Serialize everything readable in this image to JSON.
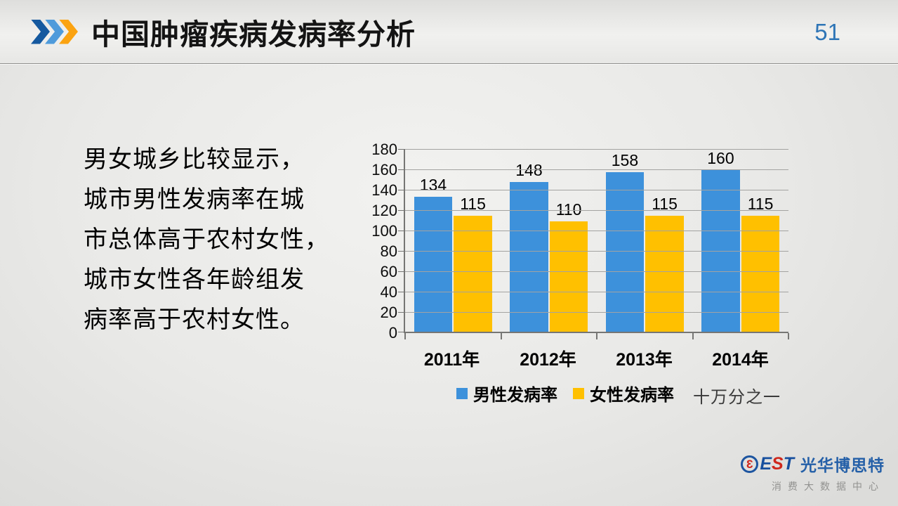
{
  "header": {
    "title": "中国肿瘤疾病发病率分析",
    "page_number": "51"
  },
  "body_text": {
    "lines": [
      "男女城乡比较显示，",
      "城市男性发病率在城",
      "市总体高于农村女性，",
      "城市女性各年龄组发",
      "病率高于农村女性。"
    ]
  },
  "chart_data": {
    "type": "bar",
    "title": "",
    "xlabel": "",
    "ylabel": "",
    "categories": [
      "2011年",
      "2012年",
      "2013年",
      "2014年"
    ],
    "series": [
      {
        "name": "男性发病率",
        "color": "#3d91db",
        "values": [
          134,
          148,
          158,
          160
        ]
      },
      {
        "name": "女性发病率",
        "color": "#ffc000",
        "values": [
          115,
          110,
          115,
          115
        ]
      }
    ],
    "ylim": [
      0,
      180
    ],
    "ytick_step": 20,
    "grid": true,
    "legend_position": "bottom",
    "unit_note": "十万分之一"
  },
  "footer": {
    "logo": {
      "mark_char": "3",
      "letters": [
        {
          "char": "E",
          "color": "#174f9e"
        },
        {
          "char": "S",
          "color": "#cf281c"
        },
        {
          "char": "T",
          "color": "#174f9e"
        }
      ],
      "cn_name": "光华博思特",
      "tagline": "消费大数据中心"
    }
  },
  "colors": {
    "chevrons": [
      "#15599f",
      "#4f9bdb",
      "#fba311"
    ],
    "male_bar": "#3d91db",
    "female_bar": "#ffc000",
    "page_number": "#2e75b6",
    "gridline": "#a3a3a1",
    "axis": "#767674"
  }
}
